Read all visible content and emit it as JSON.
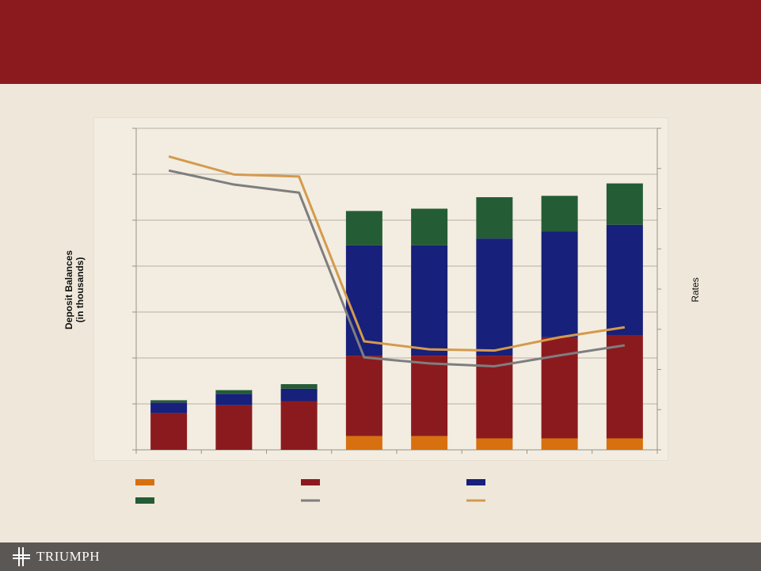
{
  "header": {
    "title": ""
  },
  "brand": {
    "logo_text": "TRIUMPH"
  },
  "colors": {
    "banner": "#8b1a1e",
    "background": "#efe8da",
    "footer": "#5a5754",
    "series1": "#d8700f",
    "series2": "#8b1a1e",
    "series3": "#17207a",
    "series4": "#245c36",
    "line1": "#7e7e80",
    "line2": "#d49a4e"
  },
  "chart_data": {
    "type": "bar",
    "stacked": true,
    "categories": [
      "",
      "",
      "",
      "",
      "",
      "",
      "",
      ""
    ],
    "ylabel": [
      "Deposit Balances",
      "(in thousands)"
    ],
    "y2label": "Rates",
    "ylim": [
      0,
      7
    ],
    "y2lim": [
      0,
      8
    ],
    "grid": true,
    "legend_position": "bottom",
    "series": [
      {
        "values": [
          0,
          0,
          0,
          0.3,
          0.3,
          0.25,
          0.25,
          0.25
        ],
        "color": "#d8700f",
        "legend_marker": "box"
      },
      {
        "values": [
          0.8,
          0.97,
          1.06,
          1.75,
          1.75,
          1.8,
          2.2,
          2.25
        ],
        "color": "#8b1a1e",
        "legend_marker": "box"
      },
      {
        "values": [
          0.23,
          0.25,
          0.27,
          2.4,
          2.4,
          2.55,
          2.3,
          2.4
        ],
        "color": "#17207a",
        "legend_marker": "box"
      },
      {
        "values": [
          0.05,
          0.08,
          0.1,
          0.75,
          0.8,
          0.9,
          0.78,
          0.9
        ],
        "color": "#245c36",
        "legend_marker": "box"
      }
    ],
    "lines": [
      {
        "values": [
          6.95,
          6.6,
          6.4,
          2.3,
          2.15,
          2.08,
          2.35,
          2.6
        ],
        "color": "#7e7e80",
        "axis": "right",
        "legend_marker": "line"
      },
      {
        "values": [
          7.3,
          6.85,
          6.8,
          2.7,
          2.5,
          2.47,
          2.8,
          3.05
        ],
        "color": "#d49a4e",
        "axis": "right",
        "legend_marker": "line"
      }
    ],
    "legend": [
      "",
      "",
      "",
      "",
      "",
      ""
    ]
  }
}
